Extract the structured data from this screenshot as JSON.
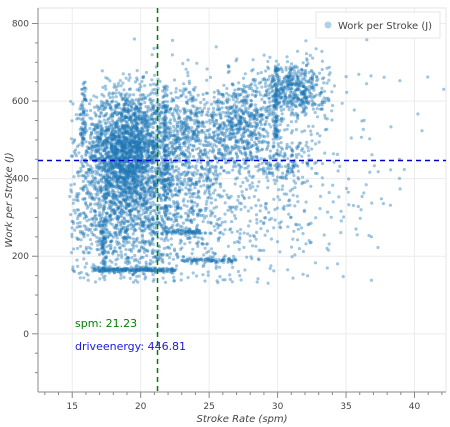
{
  "chart_data": {
    "type": "scatter",
    "xlabel": "Stroke Rate (spm)",
    "ylabel": "Work per Stroke (J)",
    "xlim": [
      12.5,
      42.3
    ],
    "ylim": [
      -150,
      840
    ],
    "x_ticks": [
      15,
      20,
      25,
      30,
      35,
      40
    ],
    "y_ticks": [
      0,
      200,
      400,
      600,
      800
    ],
    "grid": true,
    "legend": {
      "label": "Work per Stroke (J)",
      "placement": "top-right"
    },
    "series": [
      {
        "name": "Work per Stroke (J)",
        "color": "#1f77b4",
        "clusters": [
          {
            "x": 18.9,
            "y": 480,
            "sx": 1.4,
            "sy": 75,
            "n": 1700
          },
          {
            "x": 18.5,
            "y": 330,
            "sx": 2.2,
            "sy": 110,
            "n": 1100
          },
          {
            "x": 21.5,
            "y": 400,
            "sx": 2.2,
            "sy": 120,
            "n": 700
          },
          {
            "x": 23.5,
            "y": 520,
            "sx": 1.2,
            "sy": 60,
            "n": 300
          },
          {
            "x": 27.2,
            "y": 540,
            "sx": 1.3,
            "sy": 55,
            "n": 550
          },
          {
            "x": 31.2,
            "y": 630,
            "sx": 1.2,
            "sy": 38,
            "n": 500
          },
          {
            "x": 30.5,
            "y": 440,
            "sx": 1.2,
            "sy": 35,
            "n": 150
          },
          {
            "x": 24,
            "y": 330,
            "sx": 4.5,
            "sy": 120,
            "n": 600
          },
          {
            "x": 28,
            "y": 400,
            "sx": 6,
            "sy": 150,
            "n": 350
          }
        ],
        "bands": [
          {
            "x": [
              16.5,
              22.5
            ],
            "y": 165,
            "n": 200
          },
          {
            "x": [
              21.5,
              24.5
            ],
            "y": 262,
            "n": 60
          },
          {
            "x": [
              23,
              27
            ],
            "y": 190,
            "n": 80
          }
        ],
        "columns": [
          {
            "x": 15.8,
            "y": [
              490,
              650
            ],
            "n": 60
          },
          {
            "x": 21.8,
            "y": [
              300,
              640
            ],
            "n": 120
          },
          {
            "x": 29.9,
            "y": [
              500,
              690
            ],
            "n": 100
          },
          {
            "x": 17.3,
            "y": [
              160,
              300
            ],
            "n": 60
          }
        ]
      }
    ],
    "crosshair": {
      "x": 21.23,
      "y": 446.81,
      "x_color": "#008000",
      "y_color": "#0000cc"
    }
  },
  "annotations": {
    "spm": "spm: 21.23",
    "drive": "driveenergy: 446.81"
  }
}
